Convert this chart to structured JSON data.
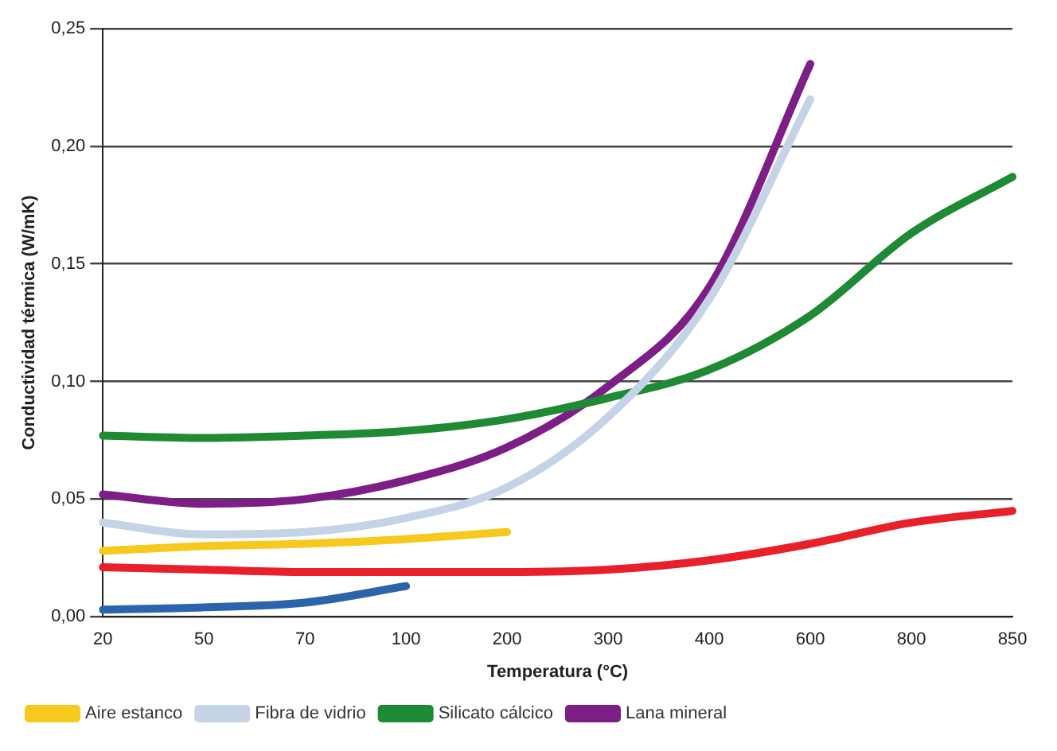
{
  "chart_data": {
    "type": "line",
    "xlabel": "Temperatura (°C)",
    "ylabel": "Conductividad térmica (W/mK)",
    "categories": [
      "20",
      "50",
      "70",
      "100",
      "200",
      "300",
      "400",
      "600",
      "800",
      "850"
    ],
    "ylim": [
      0,
      0.25
    ],
    "yticks": [
      {
        "value": 0,
        "label": "0,00"
      },
      {
        "value": 0.05,
        "label": "0,05"
      },
      {
        "value": 0.1,
        "label": "0,10"
      },
      {
        "value": 0.15,
        "label": "0,15"
      },
      {
        "value": 0.2,
        "label": "0,20"
      },
      {
        "value": 0.25,
        "label": "0,25"
      }
    ],
    "grid": "y",
    "legend": "bottom",
    "marker": "none",
    "line_style": "solid",
    "series": [
      {
        "color": "#e8202a",
        "values": [
          0.021,
          0.02,
          0.019,
          0.019,
          0.019,
          0.02,
          0.024,
          0.031,
          0.04,
          0.045
        ]
      },
      {
        "name": "Aire estanco",
        "color": "#f7c81e",
        "values": [
          0.028,
          0.03,
          0.031,
          0.033,
          0.036,
          null,
          null,
          null,
          null,
          null
        ]
      },
      {
        "name": "Fibra de vidrio",
        "color": "#c4d3e6",
        "values": [
          0.04,
          0.035,
          0.036,
          0.042,
          0.055,
          0.085,
          0.135,
          0.22,
          null,
          null
        ]
      },
      {
        "name": "Silicato cálcico",
        "color": "#1e8a34",
        "values": [
          0.077,
          0.076,
          0.077,
          0.079,
          0.084,
          0.093,
          0.105,
          0.128,
          0.163,
          0.187
        ]
      },
      {
        "color": "#2a64ad",
        "values": [
          0.003,
          0.004,
          0.006,
          0.013,
          null,
          null,
          null,
          null,
          null,
          null
        ]
      },
      {
        "name": "Lana mineral",
        "color": "#7d1d86",
        "values": [
          0.052,
          0.048,
          0.05,
          0.058,
          0.072,
          0.098,
          0.14,
          0.235,
          null,
          null
        ]
      }
    ]
  }
}
